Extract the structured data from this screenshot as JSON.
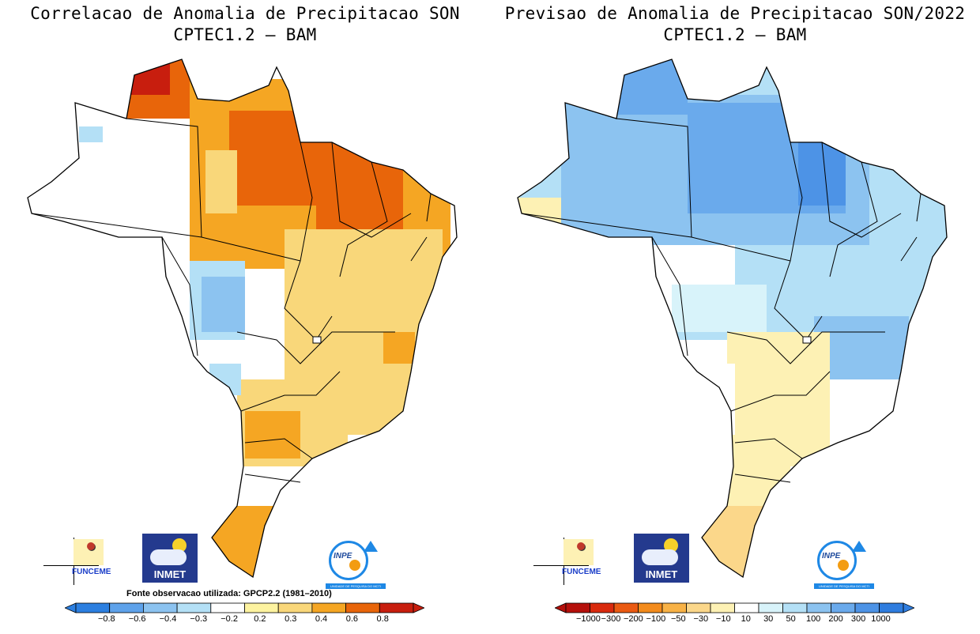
{
  "left_panel": {
    "title_line1": "Correlacao de Anomalia de Precipitacao SON",
    "title_line2": "CPTEC1.2 – BAM",
    "source_note": "Fonte observacao utilizada: GPCP2.2 (1981–2010)",
    "colorbar": {
      "labels": [
        "−0.8",
        "−0.6",
        "−0.4",
        "−0.3",
        "−0.2",
        "0.2",
        "0.3",
        "0.4",
        "0.6",
        "0.8"
      ],
      "colors": [
        "#2c7fe0",
        "#5ea2ea",
        "#8cc3f0",
        "#b4e0f6",
        "#ffffff",
        "#fdf3a0",
        "#f9d77a",
        "#f5a623",
        "#e8650a",
        "#c81e0e"
      ]
    }
  },
  "right_panel": {
    "title_line1": "Previsao de Anomalia de Precipitacao SON/2022",
    "title_line2": "CPTEC1.2 – BAM",
    "colorbar": {
      "labels": [
        "−1000",
        "−300",
        "−200",
        "−100",
        "−50",
        "−30",
        "−10",
        "10",
        "30",
        "50",
        "100",
        "200",
        "300",
        "1000"
      ],
      "colors": [
        "#b5100b",
        "#d92a0d",
        "#ea5a12",
        "#f38b1c",
        "#f8b246",
        "#fbd78a",
        "#fdf1b4",
        "#ffffff",
        "#d8f3fa",
        "#b4e0f6",
        "#8cc3f0",
        "#6aaaec",
        "#4d93e6",
        "#2f7ddf"
      ]
    }
  },
  "logos": {
    "funceme": "FUNCEME",
    "inmet": "INMET",
    "inpe": "INPE",
    "inpe_caption": "UNIDADE DE PESQUISA DO MCTI"
  }
}
